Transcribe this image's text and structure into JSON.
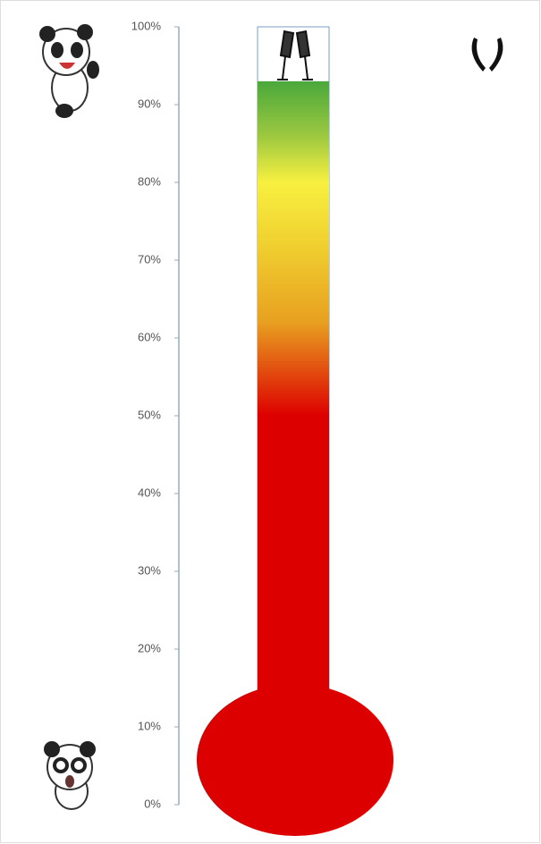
{
  "chart_data": {
    "type": "thermometer",
    "values": [
      93
    ],
    "ylim": [
      0,
      100
    ],
    "yticks": [
      {
        "value": 0,
        "label": "0%"
      },
      {
        "value": 10,
        "label": "10%"
      },
      {
        "value": 20,
        "label": "20%"
      },
      {
        "value": 30,
        "label": "30%"
      },
      {
        "value": 40,
        "label": "40%"
      },
      {
        "value": 50,
        "label": "50%"
      },
      {
        "value": 60,
        "label": "60%"
      },
      {
        "value": 70,
        "label": "70%"
      },
      {
        "value": 80,
        "label": "80%"
      },
      {
        "value": 90,
        "label": "90%"
      },
      {
        "value": 100,
        "label": "100%"
      }
    ]
  }
}
